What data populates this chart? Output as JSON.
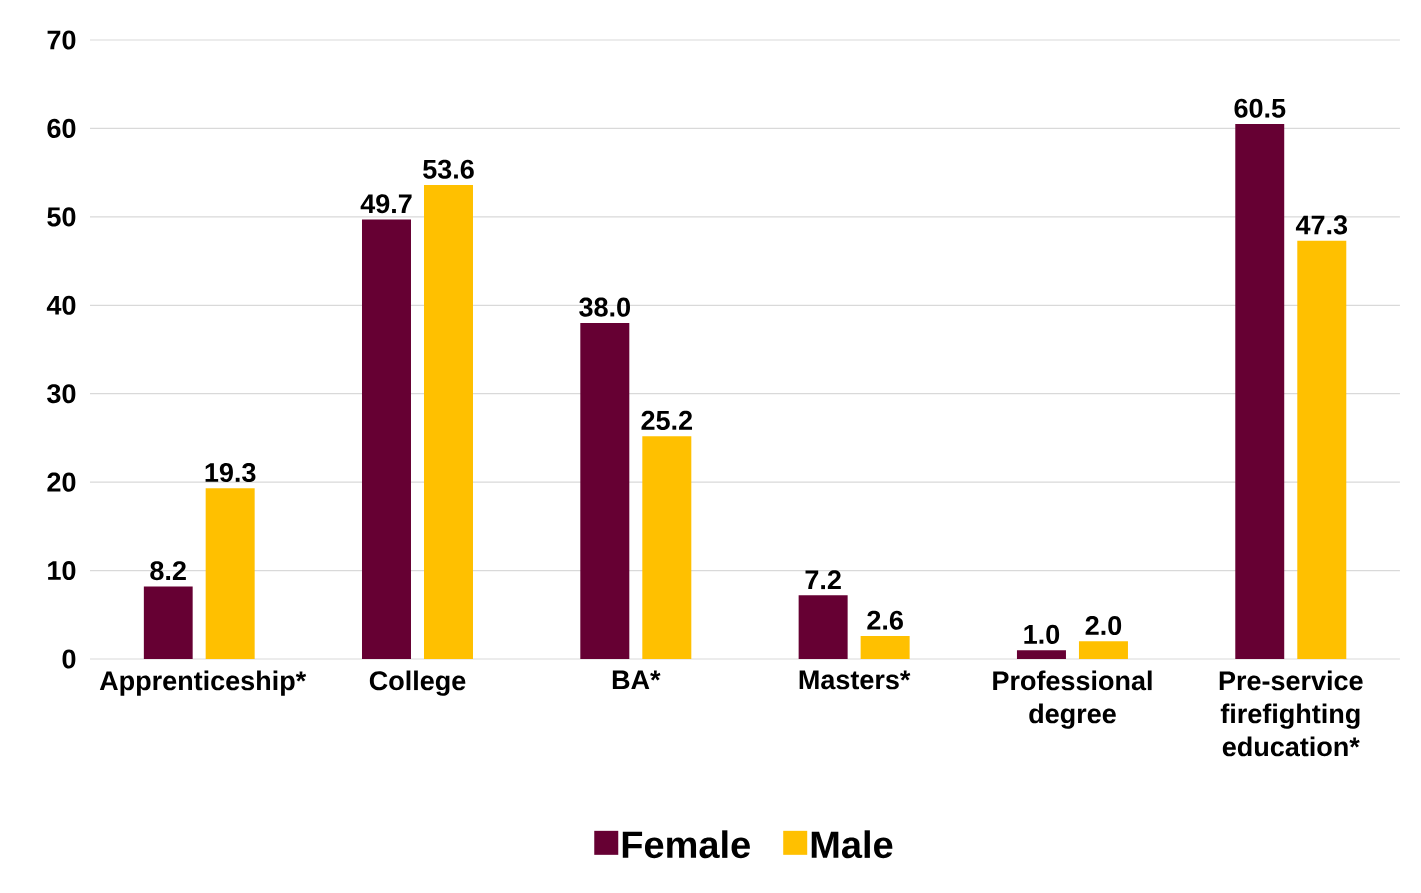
{
  "chart_data": {
    "type": "bar",
    "categories": [
      "Apprenticeship*",
      "College",
      "BA*",
      "Masters*",
      "Professional degree",
      "Pre-service firefighting education*"
    ],
    "series": [
      {
        "name": "Female",
        "color": "#660033",
        "values": [
          8.2,
          49.7,
          38.0,
          7.2,
          1.0,
          60.5
        ],
        "value_labels": [
          "8.2",
          "49.7",
          "38.0",
          "7.2",
          "1.0",
          "60.5"
        ]
      },
      {
        "name": "Male",
        "color": "#ffc000",
        "values": [
          19.3,
          53.6,
          25.2,
          2.6,
          2.0,
          47.3
        ],
        "value_labels": [
          "19.3",
          "53.6",
          "25.2",
          "2.6",
          "2.0",
          "47.3"
        ]
      }
    ],
    "ylim": [
      0,
      70
    ],
    "yticks": [
      0,
      10,
      20,
      30,
      40,
      50,
      60,
      70
    ],
    "grid": "y",
    "legend": "bottom"
  }
}
